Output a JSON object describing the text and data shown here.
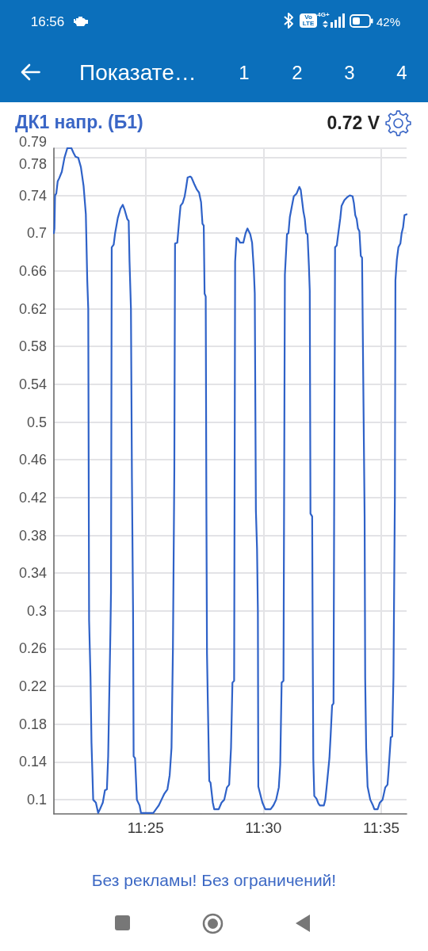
{
  "chart_data": {
    "type": "line",
    "title": "ДК1 напр. (Б1)",
    "x": [
      11.3518,
      11.3522,
      11.3526,
      11.3535,
      11.3545,
      11.3555,
      11.3574,
      11.3593,
      11.3613,
      11.3642,
      11.3657,
      11.3671,
      11.369,
      11.3709,
      11.3728,
      11.3744,
      11.3754,
      11.3761,
      11.3767,
      11.3777,
      11.3784,
      11.3788,
      11.3796,
      11.3815,
      11.3831,
      11.3844,
      11.3864,
      11.3879,
      11.3893,
      11.3902,
      11.3912,
      11.3918,
      11.3922,
      11.3927,
      11.3941,
      11.3951,
      11.397,
      11.3989,
      11.4005,
      11.4018,
      11.4037,
      11.4047,
      11.4053,
      11.4063,
      11.407,
      11.4078,
      11.4082,
      11.4092,
      11.4105,
      11.4124,
      11.4134,
      11.4221,
      11.424,
      11.426,
      11.4279,
      11.4298,
      11.4321,
      11.4337,
      11.435,
      11.436,
      11.437,
      11.4375,
      11.4391,
      11.4404,
      11.4414,
      11.4429,
      11.4443,
      11.4453,
      11.4464,
      11.4482,
      11.4491,
      11.4511,
      11.453,
      11.4545,
      11.4559,
      11.4569,
      11.4578,
      11.4584,
      11.4592,
      11.4597,
      11.4601,
      11.4607,
      11.4617,
      11.4626,
      11.4642,
      11.4652,
      11.4684,
      11.4704,
      11.4723,
      11.4742,
      11.4758,
      11.4771,
      11.4781,
      11.4793,
      11.48,
      11.481,
      11.482,
      11.4835,
      11.4858,
      11.4874,
      11.4887,
      11.4907,
      11.492,
      11.4932,
      11.4939,
      11.4947,
      11.4955,
      11.4961,
      11.4964,
      11.4974,
      11.4993,
      11.5013,
      11.5051,
      11.5071,
      11.509,
      11.5109,
      11.5119,
      11.5129,
      11.5142,
      11.5152,
      11.5167,
      11.5177,
      11.5187,
      11.5202,
      11.5215,
      11.5235,
      11.5254,
      11.5264,
      11.5283,
      11.5293,
      11.5302,
      11.5312,
      11.5322,
      11.5328,
      11.5333,
      11.5345,
      11.5349,
      11.5353,
      11.536,
      11.5376,
      11.5389,
      11.5399,
      11.5428,
      11.5438,
      11.5447,
      11.5467,
      11.5476,
      11.5486,
      11.5496,
      11.5503,
      11.5507,
      11.5519,
      11.553,
      11.5544,
      11.5553,
      11.5573,
      11.5592,
      11.5611,
      11.5631,
      11.564,
      11.565,
      11.566,
      11.5669,
      11.5679,
      11.5689,
      11.5698,
      11.5708,
      11.5716,
      11.572,
      11.5727,
      11.5737,
      11.5756,
      11.5775,
      11.5785,
      11.5808,
      11.5824,
      11.5843,
      11.5862,
      11.5878,
      11.5886,
      11.5901,
      11.5911,
      11.592,
      11.593,
      11.5934,
      11.5944,
      11.5955,
      11.5969,
      11.5978,
      11.5988,
      11.5998,
      11.6013
    ],
    "values": [
      0.7,
      0.705,
      0.74,
      0.742,
      0.755,
      0.758,
      0.765,
      0.78,
      0.79,
      0.79,
      0.785,
      0.781,
      0.78,
      0.77,
      0.75,
      0.72,
      0.65,
      0.62,
      0.29,
      0.23,
      0.16,
      0.14,
      0.1,
      0.097,
      0.086,
      0.09,
      0.097,
      0.11,
      0.111,
      0.146,
      0.23,
      0.28,
      0.32,
      0.685,
      0.688,
      0.7,
      0.716,
      0.726,
      0.73,
      0.725,
      0.715,
      0.713,
      0.67,
      0.62,
      0.44,
      0.3,
      0.146,
      0.144,
      0.1,
      0.094,
      0.086,
      0.086,
      0.09,
      0.094,
      0.1,
      0.106,
      0.111,
      0.126,
      0.155,
      0.26,
      0.45,
      0.689,
      0.69,
      0.713,
      0.729,
      0.732,
      0.739,
      0.748,
      0.759,
      0.76,
      0.759,
      0.752,
      0.746,
      0.743,
      0.733,
      0.71,
      0.708,
      0.636,
      0.633,
      0.4,
      0.255,
      0.203,
      0.12,
      0.118,
      0.097,
      0.09,
      0.09,
      0.097,
      0.1,
      0.113,
      0.116,
      0.155,
      0.224,
      0.226,
      0.67,
      0.695,
      0.694,
      0.69,
      0.69,
      0.7,
      0.705,
      0.699,
      0.69,
      0.662,
      0.636,
      0.406,
      0.366,
      0.3,
      0.114,
      0.108,
      0.097,
      0.09,
      0.09,
      0.094,
      0.1,
      0.113,
      0.137,
      0.224,
      0.226,
      0.656,
      0.699,
      0.7,
      0.717,
      0.729,
      0.739,
      0.742,
      0.749,
      0.746,
      0.723,
      0.715,
      0.7,
      0.699,
      0.665,
      0.639,
      0.403,
      0.4,
      0.258,
      0.143,
      0.104,
      0.101,
      0.096,
      0.094,
      0.094,
      0.1,
      0.113,
      0.144,
      0.169,
      0.2,
      0.202,
      0.52,
      0.685,
      0.687,
      0.7,
      0.716,
      0.729,
      0.735,
      0.738,
      0.74,
      0.739,
      0.732,
      0.719,
      0.715,
      0.705,
      0.702,
      0.676,
      0.674,
      0.52,
      0.4,
      0.229,
      0.155,
      0.114,
      0.1,
      0.094,
      0.09,
      0.09,
      0.097,
      0.1,
      0.113,
      0.116,
      0.132,
      0.166,
      0.167,
      0.229,
      0.42,
      0.65,
      0.672,
      0.685,
      0.689,
      0.7,
      0.706,
      0.719,
      0.72
    ],
    "color": "#2f62c8",
    "xlim": [
      11.3518,
      11.6013
    ],
    "xticks": [
      {
        "value": 11.41667,
        "label": "11:25"
      },
      {
        "value": 11.5,
        "label": "11:30"
      },
      {
        "value": 11.58333,
        "label": "11:35"
      }
    ],
    "ylim": [
      0.085,
      0.79
    ],
    "yticks": [
      0.1,
      0.14,
      0.18,
      0.22,
      0.26,
      0.3,
      0.34,
      0.38,
      0.42,
      0.46,
      0.5,
      0.54,
      0.58,
      0.62,
      0.66,
      0.7,
      0.74,
      0.78,
      0.79
    ],
    "grid": true,
    "annotations": [
      "16:56",
      "Vo LTE",
      "4G+",
      "42%",
      "Показате…",
      "1",
      "2",
      "3",
      "4",
      "0.72 V",
      "Без рекламы! Без ограничений!"
    ]
  }
}
